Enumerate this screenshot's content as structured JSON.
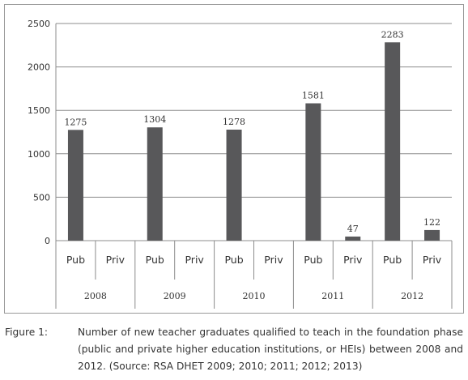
{
  "chart_data": {
    "type": "bar",
    "years": [
      "2008",
      "2009",
      "2010",
      "2011",
      "2012"
    ],
    "categories": [
      "Pub",
      "Priv",
      "Pub",
      "Priv",
      "Pub",
      "Priv",
      "Pub",
      "Priv",
      "Pub",
      "Priv"
    ],
    "values": [
      1275,
      null,
      1304,
      null,
      1278,
      null,
      1581,
      47,
      2283,
      122
    ],
    "data_labels": [
      "1275",
      "",
      "1304",
      "",
      "1278",
      "",
      "1581",
      "47",
      "2283",
      "122"
    ],
    "ylim": [
      0,
      2500
    ],
    "yticks": [
      0,
      500,
      1000,
      1500,
      2000,
      2500
    ],
    "grid": true,
    "legend": "none",
    "title": "",
    "xlabel": "",
    "ylabel": "",
    "bar_color": "#58585a"
  },
  "caption": {
    "label": "Figure 1:",
    "text": "Number of new teacher graduates qualified to teach in the foundation phase (public and private higher education institutions, or HEIs) between 2008 and 2012. (Source: RSA DHET 2009; 2010; 2011; 2012; 2013)"
  }
}
